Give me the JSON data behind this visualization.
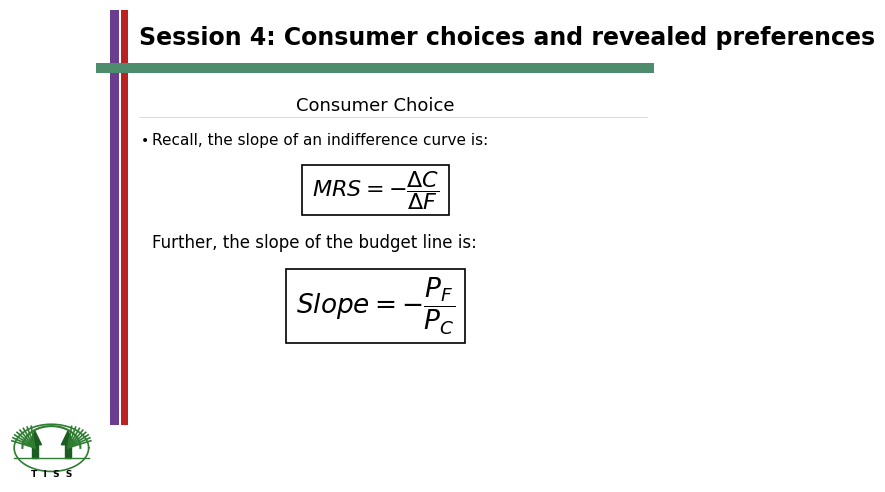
{
  "title": "Session 4: Consumer choices and revealed preferences",
  "subtitle": "Consumer Choice",
  "bullet_text": "Recall, the slope of an indifference curve is:",
  "further_text": "Further, the slope of the budget line is:",
  "bg_color": "#ffffff",
  "title_color": "#000000",
  "header_bar_color": "#4e8c6e",
  "left_bar_color1": "#6a3d8f",
  "left_bar_color2": "#bb2222",
  "title_fontsize": 17,
  "subtitle_fontsize": 13,
  "body_fontsize": 11,
  "formula1_fontsize": 16,
  "formula2_fontsize": 19
}
